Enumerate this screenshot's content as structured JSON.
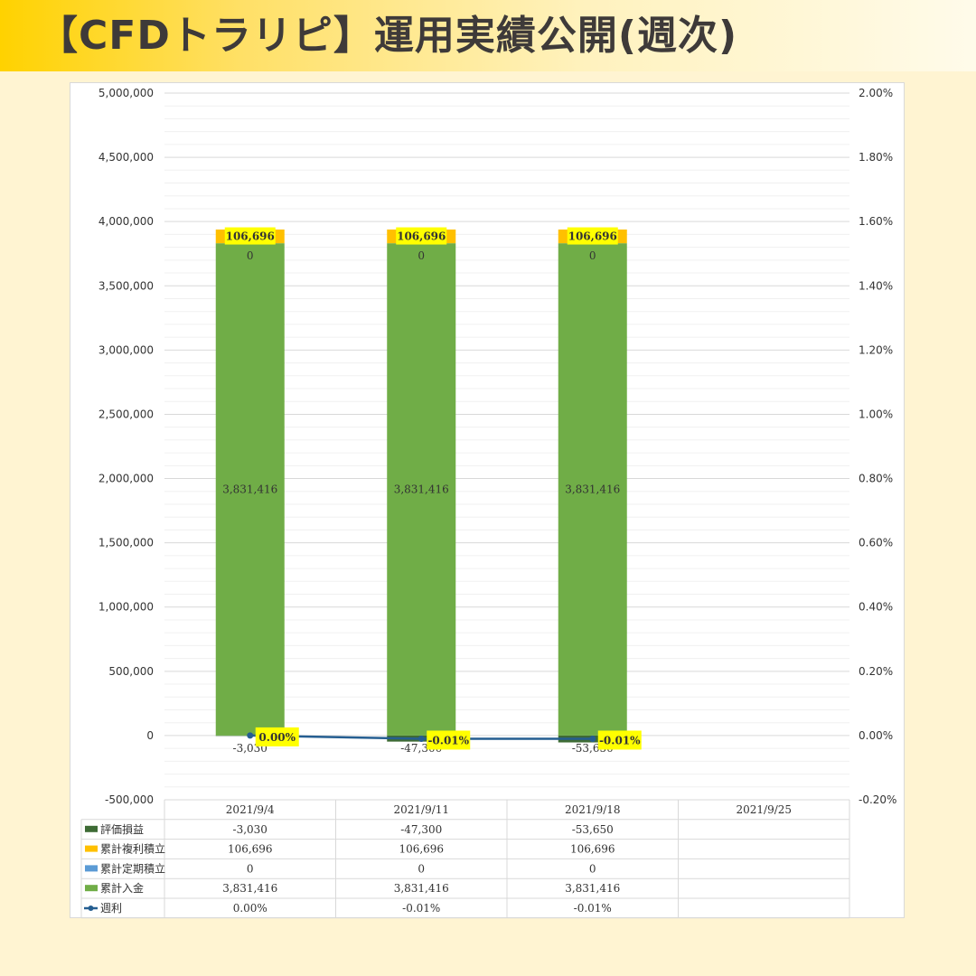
{
  "header": {
    "title": "【CFDトラリピ】運用実績公開(週次)"
  },
  "colors": {
    "header_accent": "#FFD200",
    "page_background": "#FFF4D2",
    "valuation": "#3E6B35",
    "compound": "#FFC000",
    "periodic": "#5B9BD5",
    "deposit": "#70AD47",
    "line": "#255E91",
    "label_highlight": "#FFFF00",
    "negative_text": "#C00000",
    "label_blue": "#0000CC"
  },
  "chart_data": {
    "type": "bar",
    "categories": [
      "2021/9/4",
      "2021/9/11",
      "2021/9/18",
      "2021/9/25"
    ],
    "series": [
      {
        "name": "評価損益",
        "kind": "bar",
        "color": "#3E6B35",
        "values": [
          -3030,
          -47300,
          -53650,
          null
        ],
        "labels": [
          "-3,030",
          "-47,300",
          "-53,650",
          ""
        ]
      },
      {
        "name": "累計複利積立",
        "kind": "bar",
        "color": "#FFC000",
        "values": [
          106696,
          106696,
          106696,
          null
        ],
        "labels": [
          "106,696",
          "106,696",
          "106,696",
          ""
        ]
      },
      {
        "name": "累計定期積立",
        "kind": "bar",
        "color": "#5B9BD5",
        "values": [
          0,
          0,
          0,
          null
        ],
        "labels": [
          "0",
          "0",
          "0",
          ""
        ]
      },
      {
        "name": "累計入金",
        "kind": "bar",
        "color": "#70AD47",
        "values": [
          3831416,
          3831416,
          3831416,
          null
        ],
        "labels": [
          "3,831,416",
          "3,831,416",
          "3,831,416",
          ""
        ]
      },
      {
        "name": "週利",
        "kind": "line",
        "axis": "right",
        "color": "#255E91",
        "values": [
          0.0,
          -0.01,
          -0.01,
          null
        ],
        "labels": [
          "0.00%",
          "-0.01%",
          "-0.01%",
          ""
        ]
      }
    ],
    "y_left": {
      "range": [
        -500000,
        5000000
      ],
      "ticks": [
        "-500,000",
        "0",
        "500,000",
        "1,000,000",
        "1,500,000",
        "2,000,000",
        "2,500,000",
        "3,000,000",
        "3,500,000",
        "4,000,000",
        "4,500,000",
        "5,000,000"
      ]
    },
    "y_right": {
      "range": [
        -0.2,
        2.0
      ],
      "ticks": [
        "-0.20%",
        "0.00%",
        "0.20%",
        "0.40%",
        "0.60%",
        "0.80%",
        "1.00%",
        "1.20%",
        "1.40%",
        "1.60%",
        "1.80%",
        "2.00%"
      ]
    },
    "grid": true,
    "legend": "data-table"
  }
}
